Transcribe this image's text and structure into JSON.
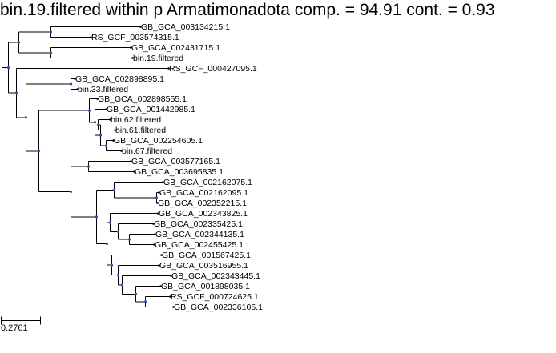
{
  "title": "bin.19.filtered within p Armatimonadota comp. = 94.91 cont. = 0.93",
  "scale_bar": {
    "label": "0.2761"
  },
  "colors": {
    "branch": "#000000",
    "internal_node": "#2f4fbf",
    "text": "#000000"
  },
  "leaves": [
    "GB_GCA_003134215.1",
    "RS_GCF_003574315.1",
    "GB_GCA_002431715.1",
    "bin.19.filtered",
    "RS_GCF_000427095.1",
    "GB_GCA_002898895.1",
    "bin.33.filtered",
    "GB_GCA_002898555.1",
    "GB_GCA_001442985.1",
    "bin.62.filtered",
    "bin.61.filtered",
    "GB_GCA_002254605.1",
    "bin.67.filtered",
    "GB_GCA_003577165.1",
    "GB_GCA_003695835.1",
    "GB_GCA_002162075.1",
    "GB_GCA_002162095.1",
    "GB_GCA_002352215.1",
    "GB_GCA_002343825.1",
    "GB_GCA_002335425.1",
    "GB_GCA_002344135.1",
    "GB_GCA_002455425.1",
    "GB_GCA_001567425.1",
    "GB_GCA_003516955.1",
    "GB_GCA_002343445.1",
    "GB_GCA_001898035.1",
    "RS_GCF_000724625.1",
    "GB_GCA_002336105.1"
  ]
}
